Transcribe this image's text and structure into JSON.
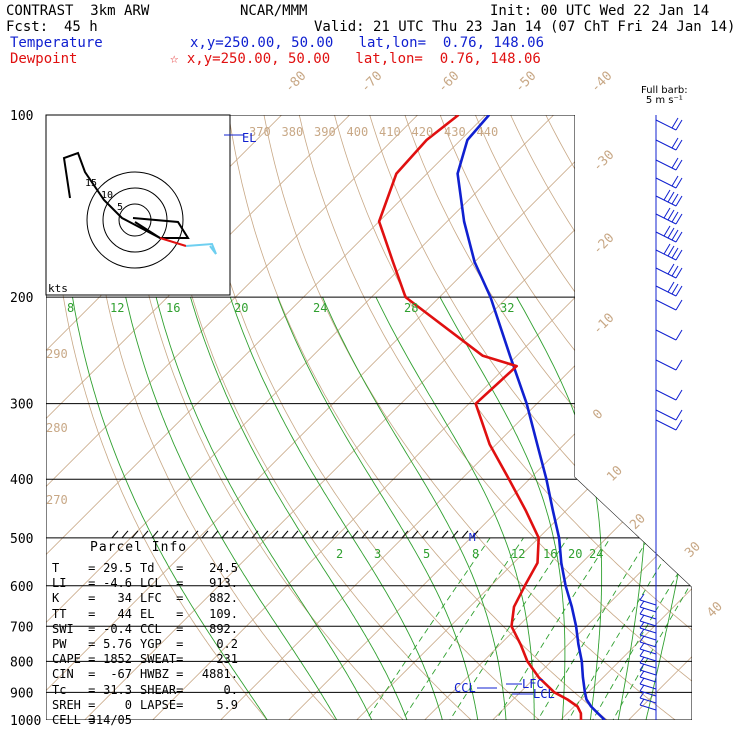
{
  "header": {
    "title": "CONTRAST  3km ARW",
    "source": "NCAR/MMM",
    "init": "Init: 00 UTC Wed 22 Jan 14",
    "fcst_label": "Fcst:",
    "fcst_value": "45 h",
    "valid": "Valid: 21 UTC Thu 23 Jan 14 (07 ChT Fri 24 Jan 14)",
    "temperature_label": "Temperature",
    "temperature_loc": "x,y=250.00, 50.00   lat,lon=  0.76, 148.06",
    "dewpoint_label": "Dewpoint",
    "dewpoint_loc": "☆ x,y=250.00, 50.00   lat,lon=  0.76, 148.06",
    "fullbarb": "Full barb:\n5 m s⁻¹"
  },
  "parcel": {
    "title": "Parcel Info",
    "rows": [
      [
        "T",
        "29.5",
        "Td",
        "24.5"
      ],
      [
        "LI",
        "-4.6",
        "LCL",
        "913."
      ],
      [
        "K",
        "34",
        "LFC",
        "882."
      ],
      [
        "TT",
        "44",
        "EL",
        "109."
      ],
      [
        "SWI",
        "-0.4",
        "CCL",
        "892."
      ],
      [
        "PW",
        "5.76",
        "YGP",
        "0.2"
      ],
      [
        "CAPE",
        "1852",
        "SWEAT",
        "231"
      ],
      [
        "CIN",
        "-67",
        "HWBZ",
        "4881."
      ],
      [
        "Tc",
        "31.3",
        "SHEAR",
        "0."
      ],
      [
        "SREH",
        "0",
        "LAPSE",
        "5.9"
      ],
      [
        "CELL",
        "314/05",
        "",
        ""
      ]
    ]
  },
  "chart_data": {
    "type": "skew-t log-p sounding",
    "title": "CONTRAST  3km ARW",
    "pressure_ticks": [
      100,
      200,
      300,
      400,
      500,
      600,
      700,
      800,
      900,
      1000
    ],
    "temperature_ticks": [
      -80,
      -70,
      -60,
      -50,
      -40,
      -30,
      -20,
      -10,
      0,
      10,
      20,
      30,
      40
    ],
    "theta_labels": [
      370,
      380,
      390,
      400,
      410,
      420,
      430,
      440
    ],
    "theta_side_labels": [
      290,
      280,
      270
    ],
    "mixing_ratio_upper": [
      8,
      12,
      16,
      20,
      24,
      28,
      32
    ],
    "mixing_ratio_lower": [
      2,
      3,
      5,
      8,
      12,
      16,
      20,
      24
    ],
    "level_labels": {
      "el": "EL",
      "lfc": "LFC",
      "lcl": "LCL",
      "ccl": "CCL",
      "m": "M"
    },
    "hodograph": {
      "rings_label": "kts",
      "rings": [
        5,
        10,
        15
      ]
    },
    "series": [
      {
        "name": "Temperature",
        "color": "#1020d0",
        "p": [
          1000,
          975,
          950,
          925,
          900,
          850,
          800,
          750,
          700,
          650,
          600,
          550,
          500,
          450,
          400,
          350,
          300,
          250,
          200,
          175,
          150,
          125,
          110,
          100
        ],
        "t": [
          26.5,
          24.5,
          22.5,
          20.8,
          19.5,
          17.0,
          14.5,
          11.5,
          8.5,
          5.0,
          1.0,
          -3.0,
          -7.0,
          -12.0,
          -17.5,
          -24.0,
          -31.5,
          -41.0,
          -52.5,
          -60.0,
          -67.5,
          -75.5,
          -79.0,
          -79.5
        ]
      },
      {
        "name": "Dewpoint",
        "color": "#e01010",
        "p": [
          1000,
          975,
          950,
          925,
          900,
          850,
          800,
          750,
          700,
          650,
          600,
          550,
          500,
          450,
          400,
          350,
          300,
          260,
          250,
          200,
          175,
          150,
          125,
          110,
          100
        ],
        "t": [
          23.0,
          22.0,
          20.5,
          18.0,
          15.0,
          10.5,
          6.5,
          3.0,
          -1.0,
          -3.5,
          -5.0,
          -6.5,
          -10.0,
          -16.0,
          -23.0,
          -31.0,
          -39.0,
          -38.5,
          -45.0,
          -65.0,
          -72.0,
          -80.0,
          -84.5,
          -85.0,
          -84.0
        ]
      }
    ],
    "wind": {
      "units": "m/s",
      "levels_hpa": [
        100,
        125,
        150,
        175,
        200,
        250,
        300,
        400,
        500,
        600,
        700,
        800,
        900,
        1000
      ],
      "speed": [
        5,
        5,
        7,
        15,
        15,
        5,
        5,
        5,
        3,
        3,
        5,
        5,
        5,
        5
      ]
    }
  }
}
